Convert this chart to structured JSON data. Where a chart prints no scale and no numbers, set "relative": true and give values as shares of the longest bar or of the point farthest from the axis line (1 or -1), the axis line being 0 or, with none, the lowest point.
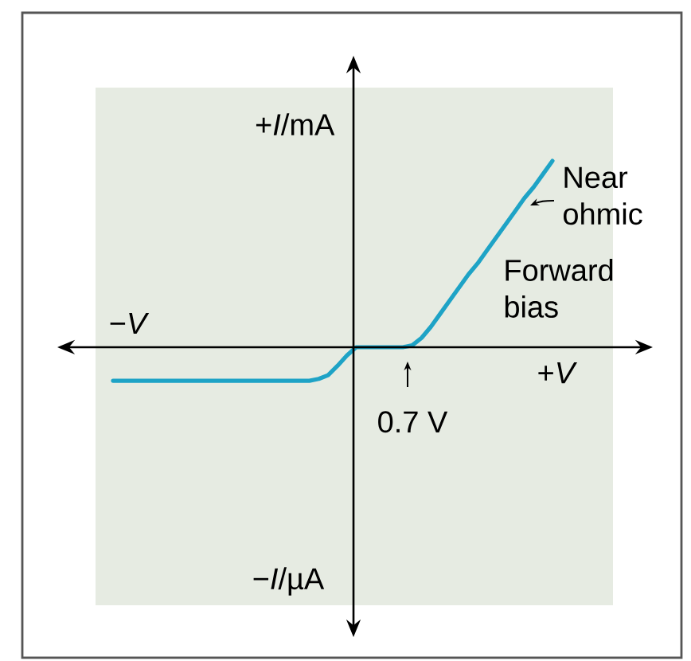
{
  "chart_data": {
    "type": "line",
    "relative": true,
    "categories": [
      null,
      null,
      null,
      null,
      null,
      null,
      null,
      null,
      null,
      null,
      null,
      null,
      null,
      null,
      null,
      null,
      null,
      null,
      null,
      null,
      null,
      null,
      null,
      null,
      null,
      null,
      null,
      null,
      null,
      null,
      null,
      null,
      null,
      null,
      null,
      null,
      null,
      null,
      null,
      null,
      null,
      null,
      null,
      null,
      null,
      null,
      null,
      null
    ],
    "values": [
      -0.18,
      -0.18,
      -0.18,
      -0.18,
      -0.18,
      -0.18,
      -0.18,
      -0.18,
      -0.18,
      -0.18,
      -0.18,
      -0.18,
      -0.18,
      -0.18,
      -0.18,
      -0.18,
      -0.18,
      -0.18,
      -0.18,
      -0.18,
      -0.18,
      -0.18,
      -0.17,
      -0.15,
      -0.1,
      -0.045,
      0,
      0,
      0,
      0,
      0,
      0,
      0.01,
      0.05,
      0.11,
      0.18,
      0.25,
      0.32,
      0.39,
      0.45,
      0.52,
      0.59,
      0.66,
      0.73,
      0.8,
      0.86,
      0.93,
      1
    ],
    "color": "#1ea3c6",
    "xlabel": "+*V*",
    "ylabel": "+*I*/mA",
    "annotations": [
      "−*V*",
      "−*I*/µA",
      "Near ohmic",
      "Forward bias",
      "0.7 V"
    ]
  }
}
